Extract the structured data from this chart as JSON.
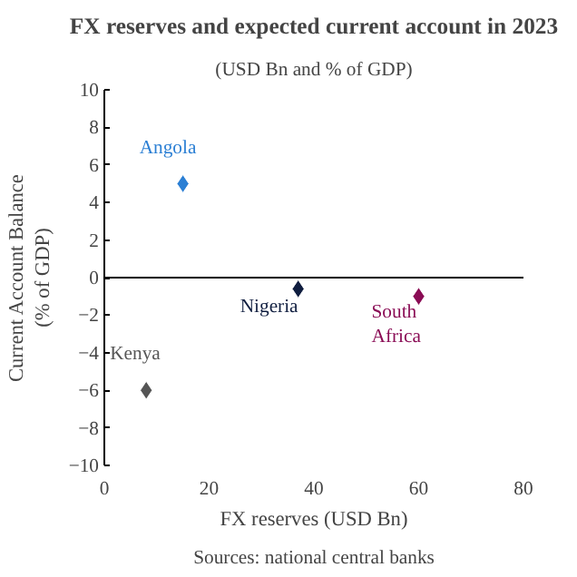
{
  "chart_data": {
    "type": "scatter",
    "title": "FX reserves and expected current account in 2023",
    "subtitle": "(USD Bn and % of GDP)",
    "xlabel": "FX reserves (USD Bn)",
    "ylabel": "Current Account Balance\n(% of GDP)",
    "annotations": [
      "Sources: national central banks"
    ],
    "marker": "diamond",
    "grid": false,
    "legend": false,
    "xlim": [
      0,
      80
    ],
    "xticks": [
      0,
      20,
      40,
      60,
      80
    ],
    "ylim": [
      -10,
      10
    ],
    "yticks": [
      -10,
      -8,
      -6,
      -4,
      -2,
      0,
      2,
      4,
      6,
      8,
      10
    ],
    "ref_lines": [
      {
        "axis": "y",
        "value": 0,
        "color": "#000000"
      }
    ],
    "series": [
      {
        "name": "Angola",
        "color": "#2b7fd4",
        "x": [
          15
        ],
        "values": [
          5
        ]
      },
      {
        "name": "Nigeria",
        "color": "#0f1d3f",
        "x": [
          37
        ],
        "values": [
          -0.6
        ]
      },
      {
        "name": "South\nAfrica",
        "color": "#8a0c55",
        "x": [
          60
        ],
        "values": [
          -1
        ]
      },
      {
        "name": "Kenya",
        "color": "#555555",
        "x": [
          8
        ],
        "values": [
          -6
        ]
      }
    ]
  }
}
